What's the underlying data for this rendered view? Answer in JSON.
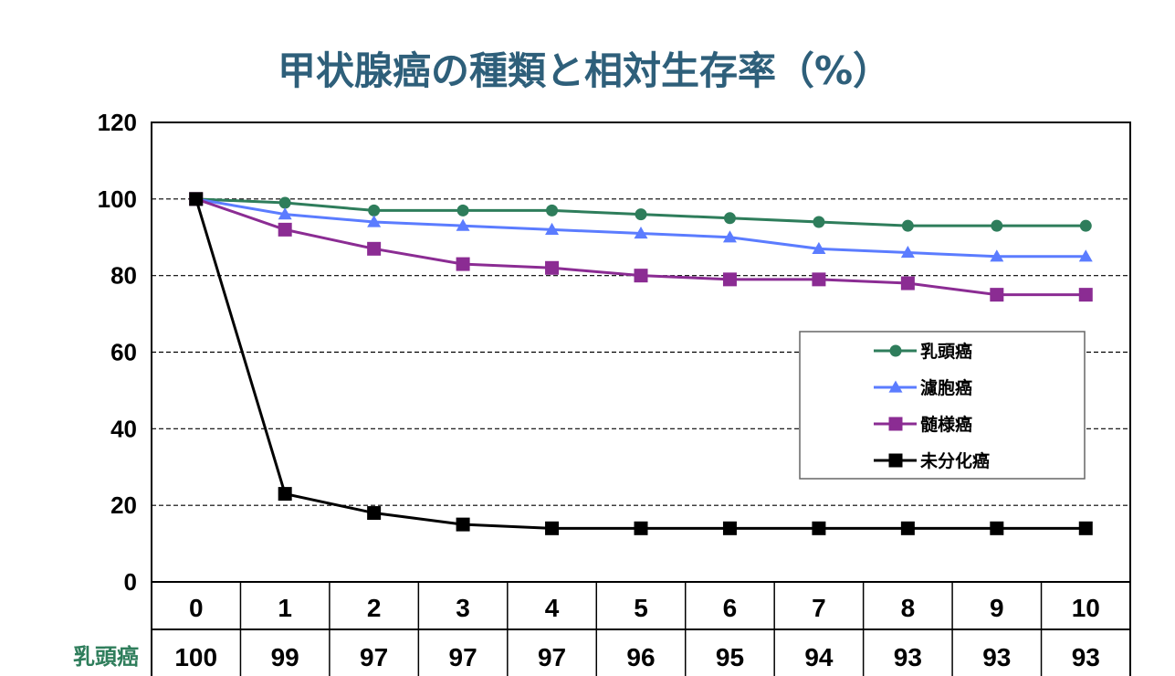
{
  "chart_data": {
    "type": "line",
    "title": "甲状腺癌の種類と相対生存率（%）",
    "ylim": [
      0,
      120
    ],
    "yticks": [
      0,
      20,
      40,
      60,
      80,
      100,
      120
    ],
    "x": [
      0,
      1,
      2,
      3,
      4,
      5,
      6,
      7,
      8,
      9,
      10
    ],
    "grid": "horizontal dashed",
    "legend_placement": "right",
    "series": [
      {
        "name": "乳頭癌",
        "color": "#2e7d5b",
        "marker": "circle",
        "values": [
          100,
          99,
          97,
          97,
          97,
          96,
          95,
          94,
          93,
          93,
          93
        ]
      },
      {
        "name": "濾胞癌",
        "color": "#5b7cff",
        "marker": "triangle",
        "values": [
          100,
          96,
          94,
          93,
          92,
          91,
          90,
          87,
          86,
          85,
          85
        ]
      },
      {
        "name": "髄様癌",
        "color": "#8b2c93",
        "marker": "square",
        "values": [
          100,
          92,
          87,
          83,
          82,
          80,
          79,
          79,
          78,
          75,
          75
        ]
      },
      {
        "name": "未分化癌",
        "color": "#000000",
        "marker": "square",
        "values": [
          100,
          23,
          18,
          15,
          14,
          14,
          14,
          14,
          14,
          14,
          14
        ]
      }
    ],
    "table": {
      "header": [
        "0",
        "1",
        "2",
        "3",
        "4",
        "5",
        "6",
        "7",
        "8",
        "9",
        "10"
      ],
      "rows": [
        {
          "label": "乳頭癌",
          "values": [
            "100",
            "99",
            "97",
            "97",
            "97",
            "96",
            "95",
            "94",
            "93",
            "93",
            "93"
          ]
        }
      ]
    }
  }
}
